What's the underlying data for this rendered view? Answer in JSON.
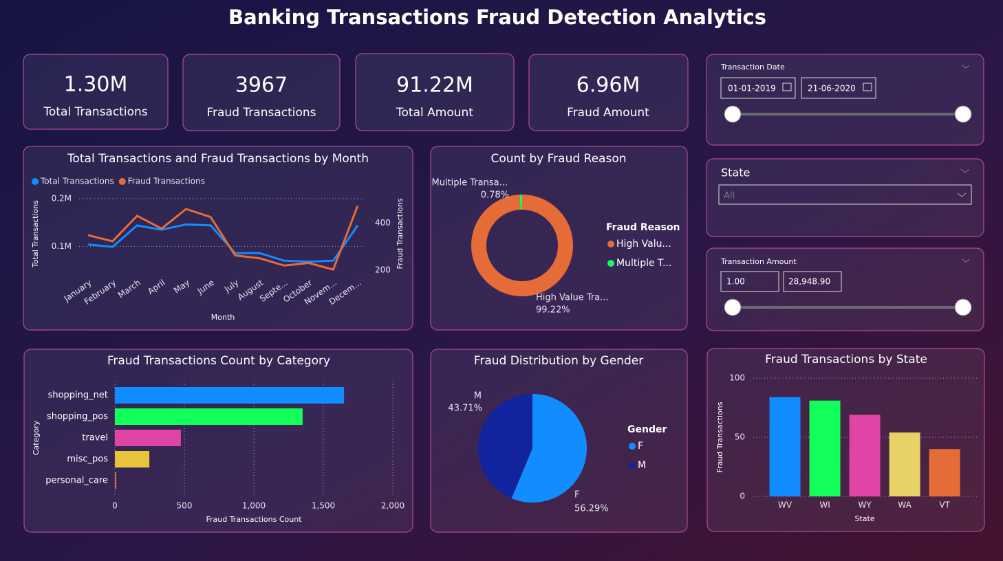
{
  "header": {
    "title": "Banking Transactions Fraud Detection Analytics"
  },
  "kpis": [
    {
      "value": "1.30M",
      "label": "Total Transactions"
    },
    {
      "value": 3967,
      "label": "Fraud Transactions"
    },
    {
      "value": "91.22M",
      "label": "Total Amount"
    },
    {
      "value": "6.96M",
      "label": "Fraud Amount"
    }
  ],
  "filters": {
    "date": {
      "title": "Transaction Date",
      "start": "01-01-2019",
      "end": "21-06-2020"
    },
    "state": {
      "title": "State",
      "value": "All"
    },
    "amount": {
      "title": "Transaction Amount",
      "min": "1.00",
      "max": "28,948.90"
    }
  },
  "chart_data": [
    {
      "type": "line",
      "title": "Total Transactions and Fraud Transactions by Month",
      "x_label": "Month",
      "y_label": "Total Transactions",
      "y2_label": "Fraud Transactions",
      "categories": [
        "January",
        "February",
        "March",
        "April",
        "May",
        "June",
        "July",
        "August",
        "Septe...",
        "October",
        "Novem...",
        "Decem..."
      ],
      "series": [
        {
          "name": "Total Transactions",
          "color": "#118dff",
          "axis": "y",
          "values": [
            104000,
            99000,
            144000,
            135000,
            146000,
            144000,
            86000,
            86000,
            70000,
            68000,
            70000,
            144000
          ]
        },
        {
          "name": "Fraud Transactions",
          "color": "#e66c37",
          "axis": "y2",
          "values": [
            349,
            323,
            431,
            377,
            460,
            426,
            263,
            251,
            220,
            231,
            203,
            474
          ]
        }
      ],
      "ylim": [
        40000,
        213000
      ],
      "yticks": [
        {
          "value": 100000,
          "label": "0.1M"
        },
        {
          "value": 200000,
          "label": "0.2M"
        }
      ],
      "y2lim": [
        180,
        530
      ],
      "y2ticks": [
        200,
        400
      ],
      "grid": true
    },
    {
      "type": "donut",
      "title": "Count by Fraud Reason",
      "categories": [
        "High Value Tra...",
        "Multiple Transa..."
      ],
      "legend_title": "Fraud Reason",
      "legend_labels": [
        "High Valu...",
        "Multiple T..."
      ],
      "values": [
        99.22,
        0.78
      ],
      "value_labels": [
        "99.22%",
        "0.78%"
      ],
      "colors": [
        "#e66c37",
        "#12ff5a"
      ]
    },
    {
      "type": "hbar",
      "title": "Fraud Transactions Count by Category",
      "x_label": "Fraud Transactions Count",
      "y_label": "Category",
      "categories": [
        "shopping_net",
        "shopping_pos",
        "travel",
        "misc_pos",
        "personal_care"
      ],
      "values": [
        1649,
        1351,
        475,
        248,
        10
      ],
      "colors": [
        "#118dff",
        "#12ff5a",
        "#e044a7",
        "#e8c43a",
        "#e66c37"
      ],
      "xlim": [
        0,
        2000
      ],
      "xticks": [
        0,
        500,
        {
          "value": 1000,
          "label": "1,000"
        },
        {
          "value": 1500,
          "label": "1,500"
        },
        {
          "value": 2000,
          "label": "2,000"
        }
      ],
      "grid": true
    },
    {
      "type": "pie",
      "title": "Fraud Distribution by Gender",
      "legend_title": "Gender",
      "categories": [
        "F",
        "M"
      ],
      "values": [
        56.29,
        43.71
      ],
      "value_labels": [
        "56.29%",
        "43.71%"
      ],
      "colors": [
        "#118dff",
        "#12239e"
      ]
    },
    {
      "type": "bar",
      "title": "Fraud Transactions by State",
      "x_label": "State",
      "y_label": "Fraud Transactions",
      "categories": [
        "WV",
        "WI",
        "WY",
        "WA",
        "VT"
      ],
      "values": [
        84,
        81,
        69,
        54,
        40
      ],
      "colors": [
        "#118dff",
        "#12ff5a",
        "#e044a7",
        "#e8d166",
        "#e66c37"
      ],
      "ylim": [
        0,
        100
      ],
      "yticks": [
        0,
        50,
        100
      ],
      "grid": true
    }
  ]
}
